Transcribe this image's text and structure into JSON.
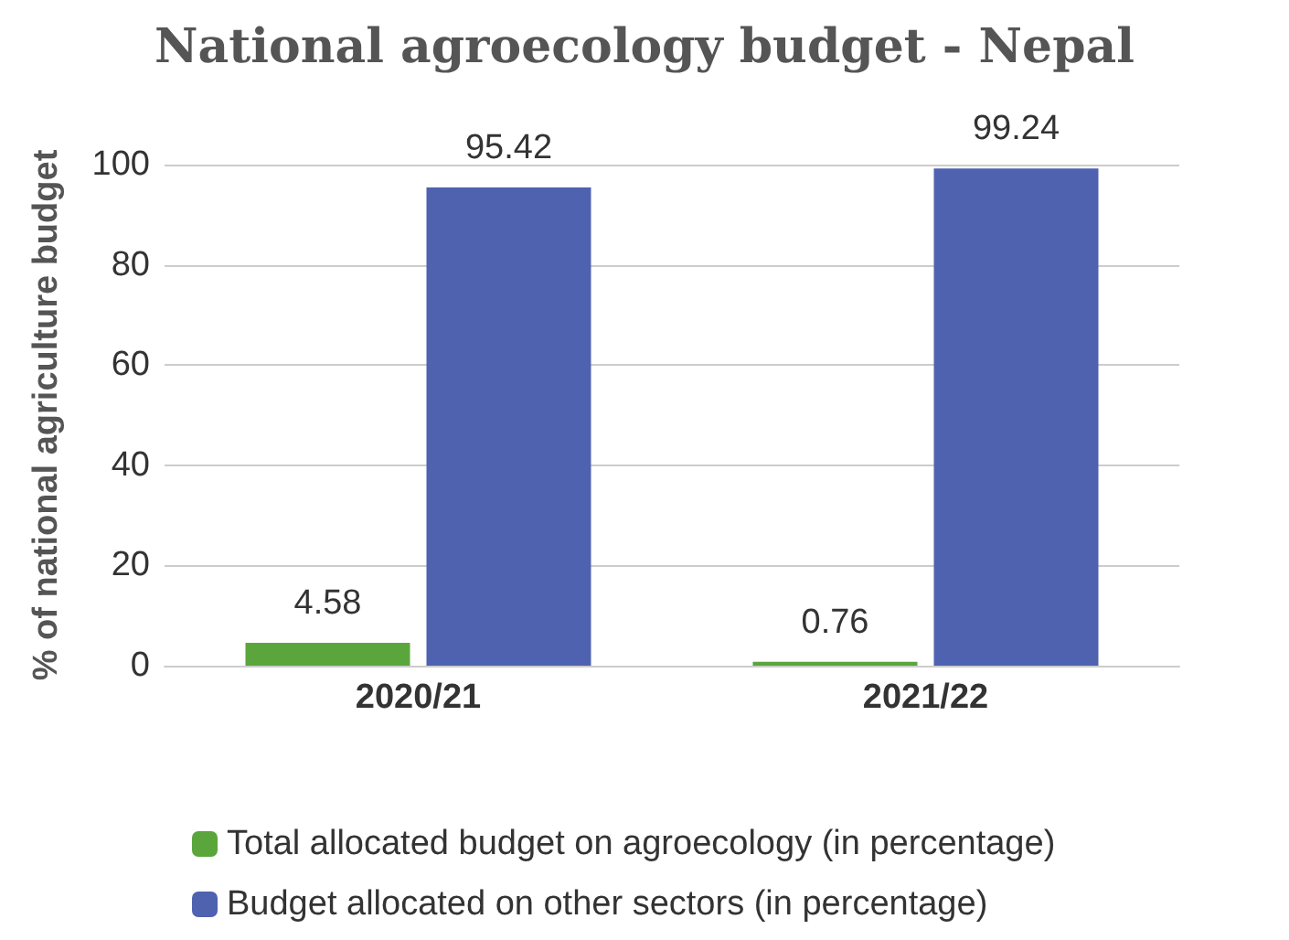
{
  "chart_data": {
    "type": "bar",
    "title": "National agroecology budget - Nepal",
    "ylabel": "% of national agriculture budget",
    "categories": [
      "2020/21",
      "2021/22"
    ],
    "series": [
      {
        "name": "Total allocated budget on agroecology (in percentage)",
        "color": "#5aa63c",
        "values": [
          4.58,
          0.76
        ]
      },
      {
        "name": "Budget allocated on other sectors (in percentage)",
        "color": "#4f62b0",
        "values": [
          95.42,
          99.24
        ]
      }
    ],
    "ylim": [
      0,
      100
    ],
    "yticks": [
      0,
      20,
      40,
      60,
      80,
      100
    ],
    "grid": "y",
    "legend": "bottom",
    "data_labels": true
  }
}
